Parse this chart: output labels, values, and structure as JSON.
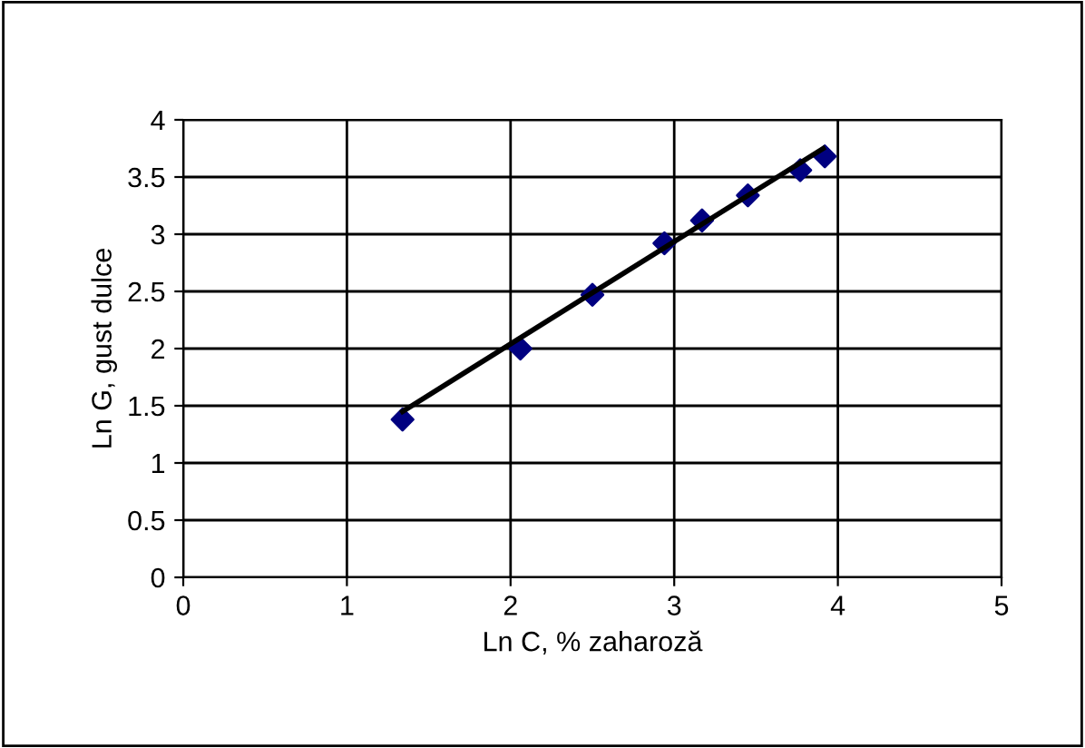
{
  "chart_data": {
    "type": "scatter",
    "xlabel": "Ln C, % zaharoză",
    "ylabel": "Ln G, gust dulce",
    "xlim": [
      0,
      5
    ],
    "ylim": [
      0,
      4
    ],
    "xticks": [
      0,
      1,
      2,
      3,
      4,
      5
    ],
    "yticks": [
      0,
      0.5,
      1,
      1.5,
      2,
      2.5,
      3,
      3.5,
      4
    ],
    "grid": true,
    "marker": "diamond",
    "x": [
      1.34,
      2.06,
      2.5,
      2.94,
      3.17,
      3.45,
      3.77,
      3.92
    ],
    "series": [
      {
        "color": "#000080",
        "values": [
          1.38,
          2.0,
          2.47,
          2.92,
          3.12,
          3.34,
          3.56,
          3.68
        ]
      },
      {
        "type": "line",
        "color": "#000000",
        "x": [
          1.34,
          3.91
        ],
        "values": [
          1.45,
          3.75
        ],
        "marker": "none",
        "line_style": "solid"
      }
    ]
  }
}
